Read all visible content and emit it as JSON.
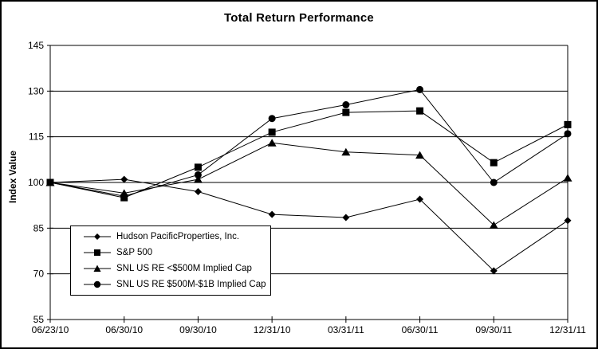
{
  "title": "Total Return Performance",
  "accent_color": "#000000",
  "background_color": "#ffffff",
  "chart_data": {
    "type": "line",
    "title": "Total Return Performance",
    "xlabel": "",
    "ylabel": "Index Value",
    "ylim": [
      55,
      145
    ],
    "yticks": [
      55,
      70,
      85,
      100,
      115,
      130,
      145
    ],
    "grid": "horizontal",
    "legend_position": "inside-bottom-left",
    "line_color": "#000000",
    "categories": [
      "06/23/10",
      "06/30/10",
      "09/30/10",
      "12/31/10",
      "03/31/11",
      "06/30/11",
      "09/30/11",
      "12/31/11"
    ],
    "series": [
      {
        "name": "Hudson PacificProperties, Inc.",
        "marker": "diamond",
        "values": [
          100,
          101,
          97,
          89.5,
          88.5,
          94.5,
          71,
          87.5
        ]
      },
      {
        "name": "S&P 500",
        "marker": "square",
        "values": [
          100,
          95,
          105,
          116.5,
          123,
          123.5,
          106.5,
          119
        ]
      },
      {
        "name": "SNL US RE <$500M Implied Cap",
        "marker": "triangle",
        "values": [
          100,
          96.5,
          101,
          113,
          110,
          109,
          86,
          101.5
        ]
      },
      {
        "name": "SNL US RE $500M-$1B Implied Cap",
        "marker": "circle",
        "values": [
          100,
          95.5,
          102.5,
          121,
          125.5,
          130.5,
          100,
          116
        ]
      }
    ]
  }
}
